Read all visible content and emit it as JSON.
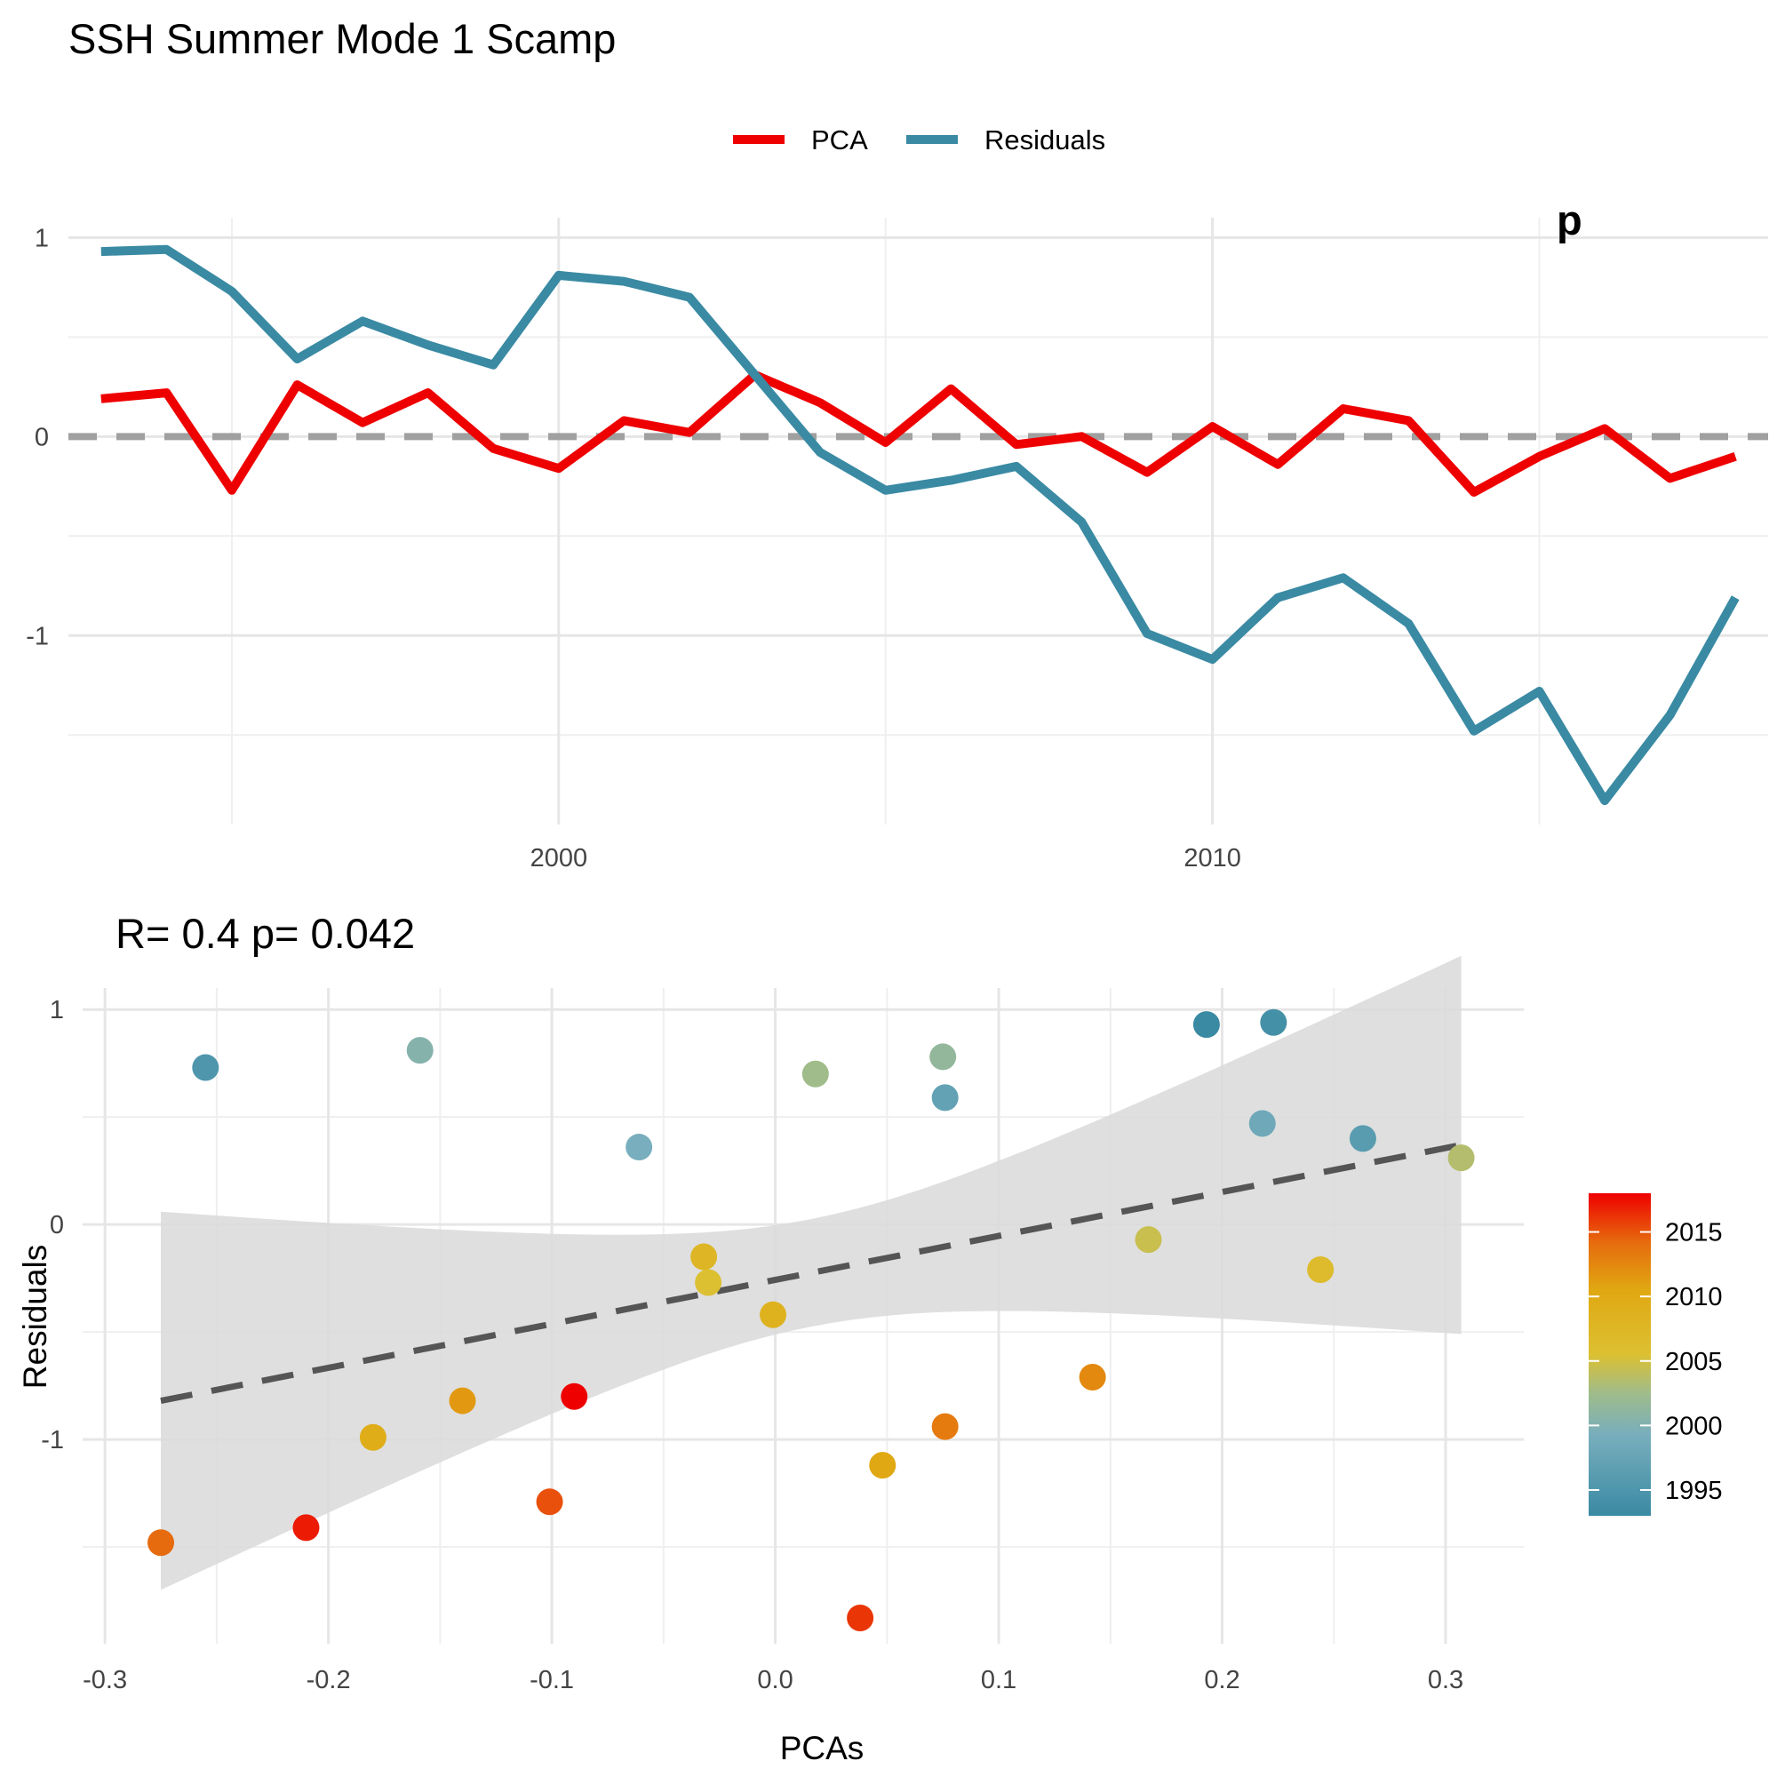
{
  "title": "SSH Summer Mode 1 Scamp",
  "colors": {
    "pca": "#ee0000",
    "residuals": "#3a8aa3",
    "zero_line": "#a0a0a0",
    "fit_line": "#555555",
    "ribbon": "#d9d9d9"
  },
  "chart_data": [
    {
      "type": "line",
      "title": "SSH Summer Mode 1 Scamp",
      "x_ticks": [
        2000,
        2010
      ],
      "y_ticks": [
        1,
        0,
        -1
      ],
      "xlim": [
        1992.5,
        2018.5
      ],
      "ylim": [
        -1.95,
        1.1
      ],
      "grid": true,
      "legend_position": "top",
      "zero_reference_line": 0,
      "corner_annotation": "p",
      "x": [
        1993,
        1994,
        1995,
        1996,
        1997,
        1998,
        1999,
        2000,
        2001,
        2002,
        2003,
        2004,
        2005,
        2006,
        2007,
        2008,
        2009,
        2010,
        2011,
        2012,
        2013,
        2014,
        2015,
        2016,
        2017,
        2018
      ],
      "series": [
        {
          "name": "PCA",
          "color": "#ee0000",
          "values": [
            0.19,
            0.22,
            -0.27,
            0.26,
            0.07,
            0.22,
            -0.06,
            -0.16,
            0.08,
            0.02,
            0.31,
            0.17,
            -0.03,
            0.24,
            -0.04,
            0.0,
            -0.18,
            0.05,
            -0.14,
            0.14,
            0.08,
            -0.28,
            -0.1,
            0.04,
            -0.21,
            -0.1
          ]
        },
        {
          "name": "Residuals",
          "color": "#3a8aa3",
          "values": [
            0.93,
            0.94,
            0.73,
            0.39,
            0.58,
            0.46,
            0.36,
            0.81,
            0.78,
            0.7,
            0.31,
            -0.08,
            -0.27,
            -0.22,
            -0.15,
            -0.43,
            -0.99,
            -1.12,
            -0.81,
            -0.71,
            -0.94,
            -1.48,
            -1.28,
            -1.83,
            -1.4,
            -0.81
          ]
        }
      ]
    },
    {
      "type": "scatter",
      "subtitle": "R= 0.4  p= 0.042",
      "xlabel": "PCAs",
      "ylabel": "Residuals",
      "xlim": [
        -0.31,
        0.335
      ],
      "ylim": [
        -1.95,
        1.1
      ],
      "x_ticks": [
        "-0.3",
        "-0.2",
        "-0.1",
        "0.0",
        "0.1",
        "0.2",
        "0.3"
      ],
      "y_ticks": [
        "1",
        "0",
        "-1"
      ],
      "grid": true,
      "trend_line": {
        "style": "dashed",
        "x_range": [
          -0.275,
          0.307
        ],
        "y_range": [
          -0.82,
          0.37
        ]
      },
      "confidence_band": true,
      "color_scale": {
        "variable": "year",
        "range": [
          1993,
          2018
        ],
        "ticks": [
          "2015",
          "2010",
          "2005",
          "2000",
          "1995"
        ],
        "legend_position": "right"
      },
      "points": [
        {
          "year": 1993,
          "x": 0.193,
          "y": 0.93
        },
        {
          "year": 1994,
          "x": 0.223,
          "y": 0.94
        },
        {
          "year": 1995,
          "x": -0.255,
          "y": 0.73
        },
        {
          "year": 1996,
          "x": 0.263,
          "y": 0.4
        },
        {
          "year": 1997,
          "x": 0.076,
          "y": 0.59
        },
        {
          "year": 1998,
          "x": 0.218,
          "y": 0.47
        },
        {
          "year": 1999,
          "x": -0.061,
          "y": 0.36
        },
        {
          "year": 2000,
          "x": -0.159,
          "y": 0.81
        },
        {
          "year": 2001,
          "x": 0.075,
          "y": 0.78
        },
        {
          "year": 2002,
          "x": 0.018,
          "y": 0.7
        },
        {
          "year": 2003,
          "x": 0.307,
          "y": 0.31
        },
        {
          "year": 2004,
          "x": 0.167,
          "y": -0.07
        },
        {
          "year": 2005,
          "x": -0.03,
          "y": -0.27
        },
        {
          "year": 2006,
          "x": 0.244,
          "y": -0.21
        },
        {
          "year": 2007,
          "x": -0.032,
          "y": -0.15
        },
        {
          "year": 2008,
          "x": -0.001,
          "y": -0.42
        },
        {
          "year": 2009,
          "x": -0.18,
          "y": -0.99
        },
        {
          "year": 2010,
          "x": 0.048,
          "y": -1.12
        },
        {
          "year": 2011,
          "x": -0.14,
          "y": -0.82
        },
        {
          "year": 2012,
          "x": 0.142,
          "y": -0.71
        },
        {
          "year": 2013,
          "x": 0.076,
          "y": -0.94
        },
        {
          "year": 2014,
          "x": -0.275,
          "y": -1.48
        },
        {
          "year": 2015,
          "x": -0.101,
          "y": -1.29
        },
        {
          "year": 2016,
          "x": 0.038,
          "y": -1.83
        },
        {
          "year": 2017,
          "x": -0.21,
          "y": -1.41
        },
        {
          "year": 2018,
          "x": -0.09,
          "y": -0.8
        }
      ]
    }
  ]
}
